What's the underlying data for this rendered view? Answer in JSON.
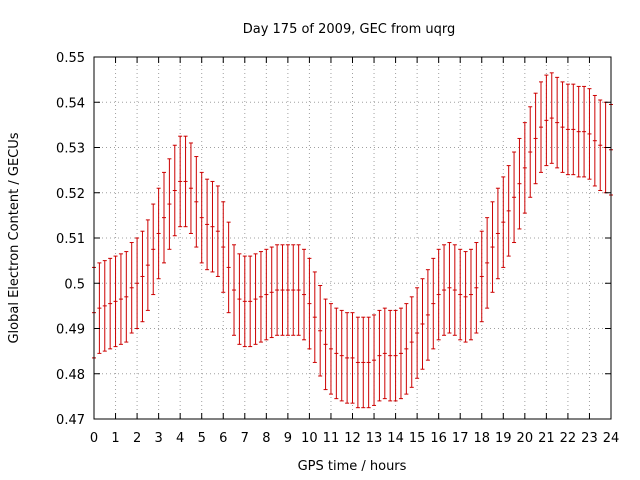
{
  "chart_data": {
    "type": "errorbar",
    "title": "Day 175 of 2009, GEC from uqrg",
    "xlabel": "GPS time / hours",
    "ylabel": "Global Electron Content / GECUs",
    "xlim": [
      0,
      24
    ],
    "ylim": [
      0.47,
      0.55
    ],
    "grid": true,
    "series_color": "#cc0000",
    "x_ticks": [
      0,
      1,
      2,
      3,
      4,
      5,
      6,
      7,
      8,
      9,
      10,
      11,
      12,
      13,
      14,
      15,
      16,
      17,
      18,
      19,
      20,
      21,
      22,
      23,
      24
    ],
    "x_tick_labels": [
      "0",
      "1",
      "2",
      "3",
      "4",
      "5",
      "6",
      "7",
      "8",
      "9",
      "10",
      "11",
      "12",
      "13",
      "14",
      "15",
      "16",
      "17",
      "18",
      "19",
      "20",
      "21",
      "22",
      "23",
      "24"
    ],
    "y_ticks": [
      0.47,
      0.48,
      0.49,
      0.5,
      0.51,
      0.52,
      0.53,
      0.54,
      0.55
    ],
    "y_tick_labels": [
      "0.47",
      "0.48",
      "0.49",
      "0.5",
      "0.51",
      "0.52",
      "0.53",
      "0.54",
      "0.55"
    ],
    "error_half_width": 0.01,
    "x": [
      0,
      0.25,
      0.5,
      0.75,
      1,
      1.25,
      1.5,
      1.75,
      2,
      2.25,
      2.5,
      2.75,
      3,
      3.25,
      3.5,
      3.75,
      4,
      4.25,
      4.5,
      4.75,
      5,
      5.25,
      5.5,
      5.75,
      6,
      6.25,
      6.5,
      6.75,
      7,
      7.25,
      7.5,
      7.75,
      8,
      8.25,
      8.5,
      8.75,
      9,
      9.25,
      9.5,
      9.75,
      10,
      10.25,
      10.5,
      10.75,
      11,
      11.25,
      11.5,
      11.75,
      12,
      12.25,
      12.5,
      12.75,
      13,
      13.25,
      13.5,
      13.75,
      14,
      14.25,
      14.5,
      14.75,
      15,
      15.25,
      15.5,
      15.75,
      16,
      16.25,
      16.5,
      16.75,
      17,
      17.25,
      17.5,
      17.75,
      18,
      18.25,
      18.5,
      18.75,
      19,
      19.25,
      19.5,
      19.75,
      20,
      20.25,
      20.5,
      20.75,
      21,
      21.25,
      21.5,
      21.75,
      22,
      22.25,
      22.5,
      22.75,
      23,
      23.25,
      23.5,
      23.75,
      24
    ],
    "y": [
      0.4935,
      0.4945,
      0.495,
      0.4955,
      0.496,
      0.4965,
      0.497,
      0.499,
      0.5,
      0.5015,
      0.504,
      0.5075,
      0.511,
      0.5145,
      0.5175,
      0.5205,
      0.5225,
      0.5225,
      0.521,
      0.518,
      0.5145,
      0.513,
      0.5125,
      0.5115,
      0.508,
      0.5035,
      0.4985,
      0.4965,
      0.496,
      0.496,
      0.4965,
      0.497,
      0.4975,
      0.498,
      0.4985,
      0.4985,
      0.4985,
      0.4985,
      0.4985,
      0.4975,
      0.4955,
      0.4925,
      0.4895,
      0.4865,
      0.4855,
      0.4845,
      0.484,
      0.4835,
      0.4835,
      0.4825,
      0.4825,
      0.4825,
      0.483,
      0.484,
      0.4845,
      0.484,
      0.484,
      0.4845,
      0.4855,
      0.487,
      0.489,
      0.491,
      0.493,
      0.4955,
      0.4975,
      0.4985,
      0.499,
      0.4985,
      0.4975,
      0.497,
      0.4975,
      0.499,
      0.5015,
      0.5045,
      0.508,
      0.511,
      0.5135,
      0.516,
      0.519,
      0.522,
      0.5255,
      0.529,
      0.532,
      0.5345,
      0.536,
      0.5365,
      0.5355,
      0.5345,
      0.534,
      0.534,
      0.5335,
      0.5335,
      0.533,
      0.5315,
      0.5305,
      0.53,
      0.5295
    ]
  }
}
